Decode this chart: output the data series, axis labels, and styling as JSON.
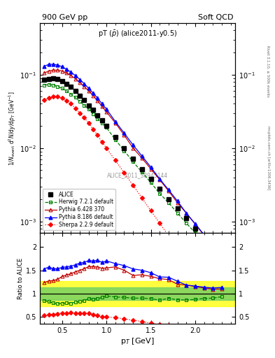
{
  "title_left": "900 GeV pp",
  "title_right": "Soft QCD",
  "plot_title": "pT ($\\bar{p}$) (alice2011-y0.5)",
  "ylabel_main": "1/N$_{\\mathrm{event}}$ d$^2$N/dy/dp$_T$ [GeV$^{-1}$]",
  "ylabel_ratio": "Ratio to ALICE",
  "xlabel": "p$_T$ [GeV]",
  "watermark": "ALICE_2011_S8945144",
  "right_label_top": "Rivet 3.1.10, ≥ 500k events",
  "right_label_bot": "mcplots.cern.ch [arXiv:1306.3436]",
  "alice_x": [
    0.3,
    0.35,
    0.4,
    0.45,
    0.5,
    0.55,
    0.6,
    0.65,
    0.7,
    0.75,
    0.8,
    0.85,
    0.9,
    0.95,
    1.0,
    1.1,
    1.2,
    1.3,
    1.4,
    1.5,
    1.6,
    1.7,
    1.8,
    1.9,
    2.0,
    2.1,
    2.2,
    2.3
  ],
  "alice_y": [
    0.085,
    0.088,
    0.09,
    0.088,
    0.082,
    0.075,
    0.068,
    0.06,
    0.052,
    0.045,
    0.038,
    0.033,
    0.028,
    0.024,
    0.02,
    0.014,
    0.01,
    0.0072,
    0.0052,
    0.0038,
    0.0028,
    0.002,
    0.0015,
    0.0011,
    0.0008,
    0.00058,
    0.00042,
    0.0003
  ],
  "herwig_x": [
    0.3,
    0.35,
    0.4,
    0.45,
    0.5,
    0.55,
    0.6,
    0.65,
    0.7,
    0.75,
    0.8,
    0.85,
    0.9,
    0.95,
    1.0,
    1.1,
    1.2,
    1.3,
    1.4,
    1.5,
    1.6,
    1.7,
    1.8,
    1.9,
    2.0,
    2.1,
    2.2,
    2.3
  ],
  "herwig_y": [
    0.072,
    0.073,
    0.072,
    0.069,
    0.065,
    0.06,
    0.054,
    0.049,
    0.043,
    0.038,
    0.034,
    0.029,
    0.025,
    0.022,
    0.019,
    0.013,
    0.0092,
    0.0065,
    0.0047,
    0.0034,
    0.0024,
    0.0018,
    0.0013,
    0.00095,
    0.0007,
    0.00052,
    0.00038,
    0.00028
  ],
  "pythia6_x": [
    0.3,
    0.35,
    0.4,
    0.45,
    0.5,
    0.55,
    0.6,
    0.65,
    0.7,
    0.75,
    0.8,
    0.85,
    0.9,
    0.95,
    1.0,
    1.1,
    1.2,
    1.3,
    1.4,
    1.5,
    1.6,
    1.7,
    1.8,
    1.9,
    2.0,
    2.1,
    2.2,
    2.3
  ],
  "pythia6_y": [
    0.105,
    0.112,
    0.115,
    0.115,
    0.112,
    0.105,
    0.097,
    0.088,
    0.078,
    0.069,
    0.06,
    0.052,
    0.044,
    0.037,
    0.031,
    0.022,
    0.015,
    0.01,
    0.0073,
    0.0052,
    0.0037,
    0.0026,
    0.0018,
    0.0013,
    0.00092,
    0.00065,
    0.00046,
    0.00033
  ],
  "pythia8_x": [
    0.3,
    0.35,
    0.4,
    0.45,
    0.5,
    0.55,
    0.6,
    0.65,
    0.7,
    0.75,
    0.8,
    0.85,
    0.9,
    0.95,
    1.0,
    1.1,
    1.2,
    1.3,
    1.4,
    1.5,
    1.6,
    1.7,
    1.8,
    1.9,
    2.0,
    2.1,
    2.2,
    2.3
  ],
  "pythia8_y": [
    0.13,
    0.138,
    0.138,
    0.135,
    0.128,
    0.118,
    0.108,
    0.097,
    0.086,
    0.075,
    0.065,
    0.056,
    0.048,
    0.04,
    0.034,
    0.023,
    0.016,
    0.011,
    0.0078,
    0.0055,
    0.0038,
    0.0027,
    0.0019,
    0.0013,
    0.00093,
    0.00066,
    0.00047,
    0.00034
  ],
  "sherpa_x": [
    0.3,
    0.35,
    0.4,
    0.45,
    0.5,
    0.55,
    0.6,
    0.65,
    0.7,
    0.75,
    0.8,
    0.85,
    0.9,
    0.95,
    1.0,
    1.1,
    1.2,
    1.3,
    1.4,
    1.5,
    1.6,
    1.7,
    1.8,
    1.9,
    2.0,
    2.1,
    2.2,
    2.3
  ],
  "sherpa_y": [
    0.045,
    0.048,
    0.05,
    0.05,
    0.048,
    0.044,
    0.04,
    0.035,
    0.03,
    0.026,
    0.022,
    0.018,
    0.015,
    0.012,
    0.01,
    0.0068,
    0.0046,
    0.0031,
    0.0021,
    0.0014,
    0.00095,
    0.00064,
    0.00043,
    0.00029,
    0.0002,
    0.00014,
    9.5e-05,
    6.5e-05
  ],
  "xlim": [
    0.25,
    2.45
  ],
  "ylim_main": [
    0.0007,
    0.5
  ],
  "ylim_ratio": [
    0.35,
    2.3
  ],
  "yellow_band_low": 0.73,
  "yellow_band_high": 1.27,
  "green_band_low": 0.87,
  "green_band_high": 1.13,
  "ratio_yticks": [
    0.5,
    1.0,
    1.5,
    2.0
  ],
  "ratio_yticklabels": [
    "0.5",
    "1",
    "1.5",
    "2"
  ]
}
